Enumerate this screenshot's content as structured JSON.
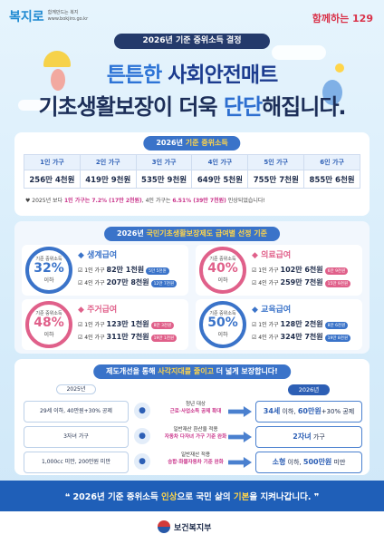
{
  "logo": {
    "name": "복지로",
    "slogan": "함께만드는 복지",
    "url": "www.bokjiro.go.kr",
    "right_logo": "함께하는 129"
  },
  "title_pill": "2026년 기준 중위소득 결정",
  "headline": {
    "line1_a": "튼튼한 ",
    "line1_b": "사회안전매트",
    "line2_a": "기초생활보장",
    "line2_b": "이 더욱 ",
    "line2_c": "단단",
    "line2_d": "해집니다."
  },
  "income": {
    "pill_a": "2026년 ",
    "pill_b": "기준 중위소득",
    "headers": [
      "1인 가구",
      "2인 가구",
      "3인 가구",
      "4인 가구",
      "5인 가구",
      "6인 가구"
    ],
    "values": [
      "256만 4천원",
      "419만 9천원",
      "535만 9천원",
      "649만 5천원",
      "755만 7천원",
      "855만 6천원"
    ],
    "note_a": "2025년 보다 ",
    "note_b": "1인 가구는 7.2% (17만 2천원)",
    "note_c": ", 4인 가구는 ",
    "note_d": "6.51% (39만 7천원)",
    "note_e": " 인상되었습니다!"
  },
  "benefits": {
    "pill_a": "2026년 ",
    "pill_b": "국민기초생활보장제도 급여별 선정 기준",
    "items": [
      {
        "ring_label": "기준 중위소득",
        "pct": "32%",
        "below": "이하",
        "title": "생계급여",
        "l1_a": "1인 가구 ",
        "l1_b": "82만 1천원",
        "l1_tag": "5만 5천원",
        "l2_a": "4인 가구 ",
        "l2_b": "207만 8천원",
        "l2_tag": "12만 7천원",
        "color": "#3a73c9"
      },
      {
        "ring_label": "기준 중위소득",
        "pct": "40%",
        "below": "이하",
        "title": "의료급여",
        "l1_a": "1인 가구 ",
        "l1_b": "102만 6천원",
        "l1_tag": "6만 9천원",
        "l2_a": "4인 가구 ",
        "l2_b": "259만 7천원",
        "l2_tag": "15만 9천원",
        "color": "#e0608a"
      },
      {
        "ring_label": "기준 중위소득",
        "pct": "48%",
        "below": "이하",
        "title": "주거급여",
        "l1_a": "1인 가구 ",
        "l1_b": "123만 1천원",
        "l1_tag": "8만 3천원",
        "l2_a": "4인 가구 ",
        "l2_b": "311만 7천원",
        "l2_tag": "19만 1천원",
        "color": "#e0608a"
      },
      {
        "ring_label": "기준 중위소득",
        "pct": "50%",
        "below": "이하",
        "title": "교육급여",
        "l1_a": "1인 가구 ",
        "l1_b": "128만 2천원",
        "l1_tag": "8만 6천원",
        "l2_a": "4인 가구 ",
        "l2_b": "324만 7천원",
        "l2_tag": "19만 8천원",
        "color": "#3a73c9"
      }
    ]
  },
  "reform": {
    "pill_a": "제도개선을 통해 ",
    "pill_b": "사각지대를 줄이고",
    "pill_c": " 더 넓게 보장합니다!",
    "old_year": "2025년",
    "new_year": "2026년",
    "rows": [
      {
        "old": "29세 이하, 40만원+30% 공제",
        "mid_a": "청년 대상",
        "mid_b": "근로·사업소득 공제 확대",
        "new_a": "34세",
        "new_b": " 이하, ",
        "new_c": "60만원",
        "new_d": "+30% 공제"
      },
      {
        "old": "3자녀 가구",
        "mid_a": "일반재산 환산율 적용",
        "mid_b": "자동차 다자녀 가구 기준 완화",
        "new_a": "2자녀",
        "new_b": " 가구",
        "new_c": "",
        "new_d": ""
      },
      {
        "old": "1,000cc 미만, 200만원 미만",
        "mid_a": "일반재산 적용",
        "mid_b": "승합·화물자동차 기준 완화",
        "new_a": "소형",
        "new_b": " 이하, ",
        "new_c": "500만원",
        "new_d": " 미만"
      }
    ]
  },
  "footer": {
    "quote_a": "2026년 기준 중위소득 ",
    "quote_b": "인상",
    "quote_c": "으로 국민 삶의 ",
    "quote_d": "기본",
    "quote_e": "을 지켜나갑니다.",
    "ministry": "보건복지부"
  }
}
